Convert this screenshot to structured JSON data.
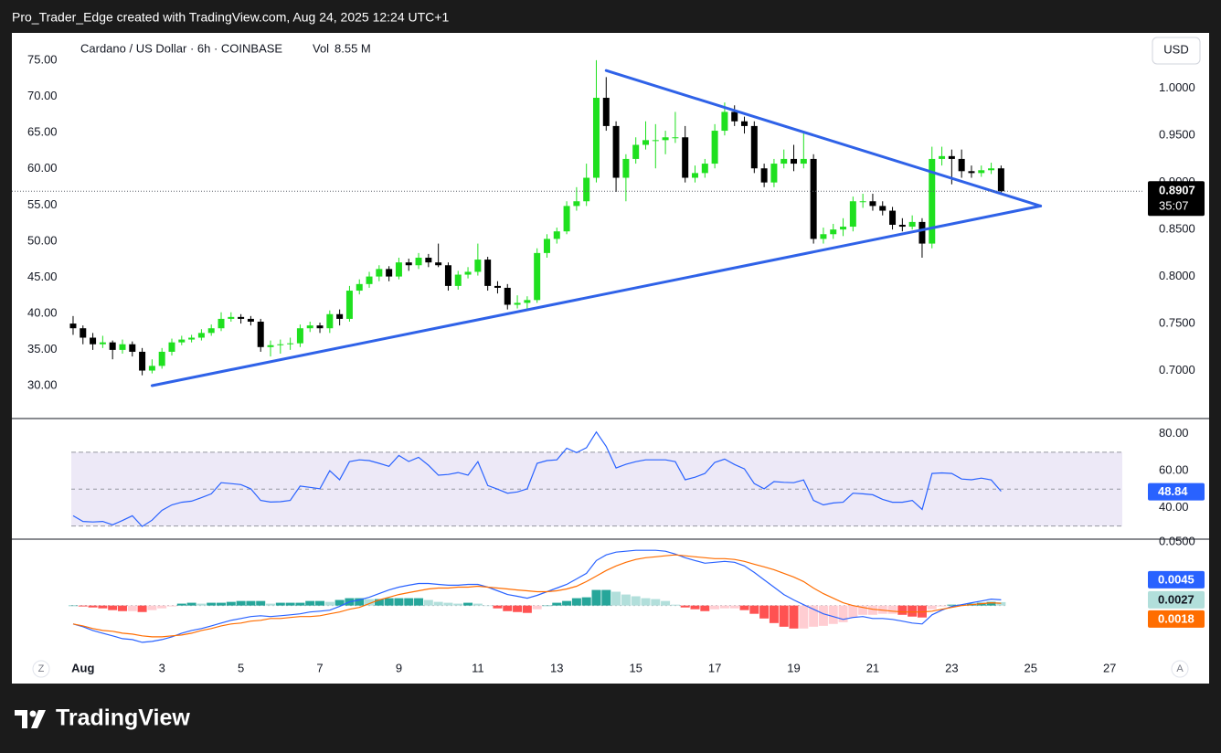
{
  "header": {
    "text": "Pro_Trader_Edge created with TradingView.com, Aug 24, 2025 12:24 UTC+1"
  },
  "footer": {
    "logo": "TradingView"
  },
  "controls": {
    "left": "Z",
    "right": "A"
  },
  "chart_data": [
    {
      "type": "candlestick",
      "title": "Cardano / US Dollar · 6h · COINBASE",
      "volume_label": "Vol",
      "volume_text": "8.55 M",
      "currency": "USD",
      "countdown": "35:07",
      "up_color": "#1fe01f",
      "down_color": "#000000",
      "grid": false,
      "xlim": [
        -6.2,
        108.5
      ],
      "ylim": [
        0.65,
        1.059
      ],
      "yticks": [
        {
          "value": 0.7,
          "label": "0.7000"
        },
        {
          "value": 0.75,
          "label": "0.7500"
        },
        {
          "value": 0.8,
          "label": "0.8000"
        },
        {
          "value": 0.85,
          "label": "0.8500"
        },
        {
          "value": 0.9,
          "label": "0.9000"
        },
        {
          "value": 0.95,
          "label": "0.9500"
        },
        {
          "value": 1.0,
          "label": "1.0000"
        }
      ],
      "y2lim": [
        25.6,
        78.8
      ],
      "y2ticks": [
        {
          "value": 30,
          "label": "30.00"
        },
        {
          "value": 35,
          "label": "35.00"
        },
        {
          "value": 40,
          "label": "40.00"
        },
        {
          "value": 45,
          "label": "45.00"
        },
        {
          "value": 50,
          "label": "50.00"
        },
        {
          "value": 55,
          "label": "55.00"
        },
        {
          "value": 60,
          "label": "60.00"
        },
        {
          "value": 65,
          "label": "65.00"
        },
        {
          "value": 70,
          "label": "70.00"
        },
        {
          "value": 75,
          "label": "75.00"
        }
      ],
      "candles": [
        [
          0.75,
          0.758,
          0.738,
          0.745
        ],
        [
          0.745,
          0.748,
          0.728,
          0.735
        ],
        [
          0.735,
          0.74,
          0.722,
          0.728
        ],
        [
          0.728,
          0.737,
          0.724,
          0.73
        ],
        [
          0.73,
          0.732,
          0.712,
          0.722
        ],
        [
          0.722,
          0.733,
          0.718,
          0.728
        ],
        [
          0.728,
          0.731,
          0.715,
          0.72
        ],
        [
          0.72,
          0.724,
          0.695,
          0.7
        ],
        [
          0.7,
          0.712,
          0.697,
          0.705
        ],
        [
          0.705,
          0.724,
          0.702,
          0.72
        ],
        [
          0.72,
          0.734,
          0.716,
          0.73
        ],
        [
          0.73,
          0.737,
          0.727,
          0.733
        ],
        [
          0.733,
          0.738,
          0.73,
          0.735
        ],
        [
          0.735,
          0.744,
          0.732,
          0.74
        ],
        [
          0.74,
          0.749,
          0.737,
          0.745
        ],
        [
          0.745,
          0.762,
          0.742,
          0.755
        ],
        [
          0.755,
          0.762,
          0.752,
          0.757
        ],
        [
          0.757,
          0.76,
          0.75,
          0.755
        ],
        [
          0.755,
          0.758,
          0.748,
          0.752
        ],
        [
          0.752,
          0.755,
          0.72,
          0.725
        ],
        [
          0.725,
          0.732,
          0.715,
          0.727
        ],
        [
          0.727,
          0.733,
          0.718,
          0.728
        ],
        [
          0.728,
          0.735,
          0.722,
          0.729
        ],
        [
          0.729,
          0.749,
          0.725,
          0.745
        ],
        [
          0.745,
          0.752,
          0.741,
          0.748
        ],
        [
          0.748,
          0.751,
          0.74,
          0.745
        ],
        [
          0.745,
          0.764,
          0.74,
          0.76
        ],
        [
          0.76,
          0.765,
          0.748,
          0.755
        ],
        [
          0.755,
          0.79,
          0.752,
          0.785
        ],
        [
          0.785,
          0.797,
          0.781,
          0.792
        ],
        [
          0.792,
          0.805,
          0.788,
          0.8
        ],
        [
          0.8,
          0.812,
          0.795,
          0.808
        ],
        [
          0.808,
          0.811,
          0.795,
          0.8
        ],
        [
          0.8,
          0.82,
          0.797,
          0.815
        ],
        [
          0.815,
          0.819,
          0.806,
          0.812
        ],
        [
          0.812,
          0.825,
          0.808,
          0.82
        ],
        [
          0.82,
          0.824,
          0.81,
          0.815
        ],
        [
          0.815,
          0.835,
          0.81,
          0.812
        ],
        [
          0.812,
          0.815,
          0.785,
          0.79
        ],
        [
          0.79,
          0.806,
          0.786,
          0.802
        ],
        [
          0.802,
          0.81,
          0.798,
          0.805
        ],
        [
          0.805,
          0.835,
          0.801,
          0.818
        ],
        [
          0.818,
          0.821,
          0.785,
          0.79
        ],
        [
          0.79,
          0.795,
          0.782,
          0.788
        ],
        [
          0.788,
          0.792,
          0.765,
          0.77
        ],
        [
          0.77,
          0.78,
          0.766,
          0.772
        ],
        [
          0.772,
          0.779,
          0.764,
          0.775
        ],
        [
          0.775,
          0.83,
          0.772,
          0.825
        ],
        [
          0.825,
          0.845,
          0.82,
          0.84
        ],
        [
          0.84,
          0.852,
          0.835,
          0.848
        ],
        [
          0.848,
          0.88,
          0.845,
          0.875
        ],
        [
          0.875,
          0.895,
          0.87,
          0.88
        ],
        [
          0.88,
          0.92,
          0.875,
          0.905
        ],
        [
          0.905,
          1.03,
          0.9,
          0.99
        ],
        [
          0.99,
          1.012,
          0.955,
          0.96
        ],
        [
          0.96,
          0.965,
          0.89,
          0.905
        ],
        [
          0.905,
          0.93,
          0.88,
          0.925
        ],
        [
          0.925,
          0.948,
          0.92,
          0.94
        ],
        [
          0.94,
          0.965,
          0.935,
          0.945
        ],
        [
          0.945,
          0.962,
          0.915,
          0.945
        ],
        [
          0.945,
          0.955,
          0.93,
          0.948
        ],
        [
          0.948,
          0.975,
          0.942,
          0.948
        ],
        [
          0.948,
          0.96,
          0.9,
          0.905
        ],
        [
          0.905,
          0.918,
          0.9,
          0.91
        ],
        [
          0.91,
          0.925,
          0.905,
          0.92
        ],
        [
          0.92,
          0.962,
          0.915,
          0.955
        ],
        [
          0.955,
          0.985,
          0.95,
          0.975
        ],
        [
          0.975,
          0.982,
          0.96,
          0.965
        ],
        [
          0.965,
          0.97,
          0.952,
          0.96
        ],
        [
          0.96,
          0.965,
          0.91,
          0.915
        ],
        [
          0.915,
          0.92,
          0.895,
          0.9
        ],
        [
          0.9,
          0.925,
          0.895,
          0.92
        ],
        [
          0.92,
          0.935,
          0.915,
          0.925
        ],
        [
          0.925,
          0.94,
          0.912,
          0.92
        ],
        [
          0.92,
          0.953,
          0.915,
          0.925
        ],
        [
          0.925,
          0.93,
          0.835,
          0.84
        ],
        [
          0.84,
          0.852,
          0.835,
          0.845
        ],
        [
          0.845,
          0.856,
          0.84,
          0.85
        ],
        [
          0.85,
          0.862,
          0.843,
          0.853
        ],
        [
          0.853,
          0.885,
          0.848,
          0.88
        ],
        [
          0.88,
          0.888,
          0.873,
          0.88
        ],
        [
          0.88,
          0.888,
          0.87,
          0.875
        ],
        [
          0.875,
          0.88,
          0.865,
          0.87
        ],
        [
          0.87,
          0.874,
          0.85,
          0.855
        ],
        [
          0.855,
          0.862,
          0.848,
          0.853
        ],
        [
          0.853,
          0.865,
          0.85,
          0.858
        ],
        [
          0.858,
          0.862,
          0.82,
          0.835
        ],
        [
          0.835,
          0.938,
          0.83,
          0.925
        ],
        [
          0.925,
          0.938,
          0.918,
          0.928
        ],
        [
          0.928,
          0.935,
          0.898,
          0.925
        ],
        [
          0.925,
          0.935,
          0.905,
          0.912
        ],
        [
          0.912,
          0.918,
          0.905,
          0.91
        ],
        [
          0.91,
          0.918,
          0.906,
          0.913
        ],
        [
          0.913,
          0.921,
          0.909,
          0.915
        ],
        [
          0.915,
          0.918,
          0.888,
          0.8907
        ]
      ],
      "trendline_color": "#2f62e8",
      "trendlines": [
        {
          "points": [
            [
              54,
              1.019
            ],
            [
              98,
              0.875
            ]
          ]
        },
        {
          "points": [
            [
              8,
              0.684
            ],
            [
              98,
              0.875
            ]
          ]
        }
      ]
    },
    {
      "type": "line",
      "color": "#2962ff",
      "band_color": "#ede9f7",
      "ylim": [
        23.4,
        87.8
      ],
      "yticks": [
        {
          "value": 40,
          "label": "40.00"
        },
        {
          "value": 60,
          "label": "60.00"
        },
        {
          "value": 80,
          "label": "80.00"
        }
      ],
      "bands": [
        70,
        50,
        30
      ],
      "values": [
        35.6,
        32.5,
        32.2,
        32.5,
        30.7,
        33,
        35.6,
        29.8,
        33.2,
        38.5,
        41.5,
        42.9,
        43.5,
        45.4,
        47.5,
        53.5,
        53.0,
        52.5,
        50.2,
        43.9,
        43.0,
        43.2,
        43.9,
        51.7,
        51.0,
        50.2,
        60.0,
        55.1,
        64.9,
        65.9,
        65.5,
        64.0,
        62.4,
        68.3,
        65.0,
        67.3,
        63.0,
        57.6,
        58.0,
        59.0,
        57.6,
        64.9,
        52.0,
        50.0,
        47.8,
        48.5,
        50.2,
        64.0,
        65.5,
        65.9,
        72.2,
        69.8,
        72.5,
        81.0,
        73.2,
        61.5,
        63.5,
        64.9,
        65.9,
        65.9,
        65.9,
        64.9,
        55.1,
        56.5,
        58.5,
        64.5,
        66.3,
        63.4,
        61.0,
        53.0,
        50.2,
        54.1,
        53.7,
        53.5,
        55.0,
        43.9,
        41.5,
        42.5,
        42.9,
        47.8,
        47.5,
        47.0,
        44.5,
        42.9,
        42.9,
        43.9,
        39.0,
        58.5,
        58.8,
        58.5,
        55.5,
        55.1,
        56.0,
        55.0,
        48.84
      ]
    },
    {
      "type": "macd",
      "macd_color": "#2962ff",
      "signal_color": "#ff6d00",
      "hist_colors": {
        "grow_above": "#26a69a",
        "fall_above": "#b2dfdb",
        "grow_below": "#ff5252",
        "fall_below": "#ffcdd2"
      },
      "ylim": [
        -0.0413,
        0.0516
      ],
      "yticks": [
        {
          "value": 0.05,
          "label": "0.0500"
        }
      ],
      "xticks": [
        {
          "value": 1,
          "label": "Aug"
        },
        {
          "value": 9,
          "label": "3"
        },
        {
          "value": 17,
          "label": "5"
        },
        {
          "value": 25,
          "label": "7"
        },
        {
          "value": 33,
          "label": "9"
        },
        {
          "value": 41,
          "label": "11"
        },
        {
          "value": 49,
          "label": "13"
        },
        {
          "value": 57,
          "label": "15"
        },
        {
          "value": 65,
          "label": "17"
        },
        {
          "value": 73,
          "label": "19"
        },
        {
          "value": 81,
          "label": "21"
        },
        {
          "value": 89,
          "label": "23"
        },
        {
          "value": 97,
          "label": "25"
        },
        {
          "value": 105,
          "label": "27"
        }
      ],
      "macd": [
        -0.0145,
        -0.0167,
        -0.0196,
        -0.0218,
        -0.0239,
        -0.0261,
        -0.0268,
        -0.029,
        -0.0283,
        -0.0268,
        -0.0247,
        -0.0218,
        -0.0196,
        -0.0181,
        -0.016,
        -0.0138,
        -0.0116,
        -0.0102,
        -0.0087,
        -0.008,
        -0.0087,
        -0.008,
        -0.0073,
        -0.0065,
        -0.0051,
        -0.0044,
        -0.0036,
        -0.0007,
        0.0029,
        0.0044,
        0.0065,
        0.0094,
        0.0123,
        0.0145,
        0.016,
        0.0174,
        0.0174,
        0.0167,
        0.016,
        0.016,
        0.0167,
        0.0167,
        0.0145,
        0.0116,
        0.0087,
        0.0073,
        0.0058,
        0.008,
        0.0109,
        0.0138,
        0.0167,
        0.021,
        0.0254,
        0.0355,
        0.0399,
        0.0421,
        0.0428,
        0.0435,
        0.0435,
        0.0435,
        0.0428,
        0.0406,
        0.0377,
        0.0355,
        0.0334,
        0.0341,
        0.0348,
        0.0341,
        0.0312,
        0.0261,
        0.0203,
        0.0145,
        0.0087,
        0.0044,
        0.0007,
        -0.0029,
        -0.0065,
        -0.0087,
        -0.0109,
        -0.0094,
        -0.0087,
        -0.0102,
        -0.0102,
        -0.0109,
        -0.0123,
        -0.0138,
        -0.0145,
        -0.0073,
        -0.0036,
        -0.0007,
        0.0007,
        0.0022,
        0.0036,
        0.0051,
        0.0045
      ],
      "signal": [
        -0.0145,
        -0.016,
        -0.0181,
        -0.0196,
        -0.0203,
        -0.0218,
        -0.0225,
        -0.0239,
        -0.0247,
        -0.0247,
        -0.0239,
        -0.0232,
        -0.0218,
        -0.0196,
        -0.0181,
        -0.016,
        -0.0145,
        -0.0138,
        -0.0123,
        -0.0116,
        -0.0102,
        -0.0102,
        -0.0094,
        -0.0087,
        -0.0087,
        -0.008,
        -0.0065,
        -0.0051,
        -0.0029,
        -0.0015,
        0.0015,
        0.0044,
        0.0065,
        0.0087,
        0.0102,
        0.0116,
        0.0131,
        0.0138,
        0.0138,
        0.0145,
        0.0145,
        0.0152,
        0.0145,
        0.0138,
        0.0131,
        0.0123,
        0.0116,
        0.0109,
        0.0109,
        0.0116,
        0.0131,
        0.0152,
        0.0189,
        0.0232,
        0.0276,
        0.0312,
        0.0341,
        0.0363,
        0.0377,
        0.0384,
        0.0392,
        0.0399,
        0.0392,
        0.0384,
        0.0377,
        0.037,
        0.037,
        0.0363,
        0.0348,
        0.0326,
        0.0305,
        0.0283,
        0.0254,
        0.0225,
        0.0189,
        0.0138,
        0.0094,
        0.0058,
        0.0022,
        0,
        -0.0015,
        -0.0029,
        -0.0036,
        -0.0044,
        -0.0051,
        -0.0051,
        -0.0051,
        -0.0044,
        -0.0029,
        -0.0015,
        0,
        0.0007,
        0.0015,
        0.0022,
        0.0018
      ],
      "histogram": [
        0,
        -0.0007,
        -0.0015,
        -0.0022,
        -0.0036,
        -0.0044,
        -0.0044,
        -0.0051,
        -0.0036,
        -0.0022,
        -0.0007,
        0.0015,
        0.0022,
        0.0015,
        0.0022,
        0.0022,
        0.0029,
        0.0036,
        0.0036,
        0.0036,
        0.0015,
        0.0022,
        0.0022,
        0.0022,
        0.0036,
        0.0036,
        0.0029,
        0.0044,
        0.0058,
        0.0058,
        0.0051,
        0.0051,
        0.0058,
        0.0058,
        0.0058,
        0.0058,
        0.0044,
        0.0029,
        0.0022,
        0.0015,
        0.0022,
        0.0015,
        0,
        -0.0022,
        -0.0044,
        -0.0051,
        -0.0058,
        -0.0029,
        0,
        0.0022,
        0.0036,
        0.0058,
        0.0065,
        0.0123,
        0.0123,
        0.0109,
        0.0087,
        0.0073,
        0.0058,
        0.0051,
        0.0036,
        0.0007,
        -0.0015,
        -0.0029,
        -0.0044,
        -0.0029,
        -0.0022,
        -0.0022,
        -0.0036,
        -0.0065,
        -0.0102,
        -0.0138,
        -0.0167,
        -0.0181,
        -0.0181,
        -0.0167,
        -0.016,
        -0.0145,
        -0.0131,
        -0.0094,
        -0.0073,
        -0.0073,
        -0.0065,
        -0.0065,
        -0.0073,
        -0.0087,
        -0.0094,
        -0.0029,
        -0.0007,
        0.0007,
        0.0007,
        0.0015,
        0.0022,
        0.0029,
        0.0027
      ]
    }
  ]
}
